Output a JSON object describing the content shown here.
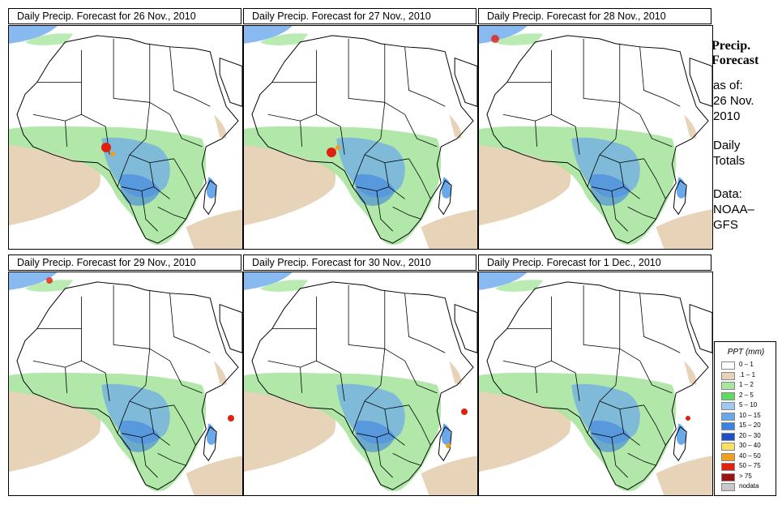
{
  "panels": [
    {
      "title": "Daily Precip. Forecast for  26 Nov., 2010"
    },
    {
      "title": "Daily Precip. Forecast for  27 Nov., 2010"
    },
    {
      "title": "Daily Precip. Forecast for  28 Nov., 2010"
    },
    {
      "title": "Daily Precip. Forecast for  29 Nov., 2010"
    },
    {
      "title": "Daily Precip. Forecast for  30 Nov., 2010"
    },
    {
      "title": "Daily Precip. Forecast for  1 Dec., 2010"
    }
  ],
  "side": {
    "title_line1": "Precip.",
    "title_line2": "Forecast",
    "asof_label": "as of:",
    "date_line1": "26 Nov.",
    "date_line2": "2010",
    "totals_line1": "Daily",
    "totals_line2": "Totals",
    "data_line1": "Data:",
    "data_line2": "NOAA–",
    "data_line3": "GFS"
  },
  "legend": {
    "title": "PPT (mm)",
    "items": [
      {
        "label": "0 – 1",
        "color": "#ffffff"
      },
      {
        "label": ".1 – 1",
        "color": "#e6d3b8"
      },
      {
        "label": "1 – 2",
        "color": "#a8e6a0"
      },
      {
        "label": "2 – 5",
        "color": "#5fdc5f"
      },
      {
        "label": "5 – 10",
        "color": "#a0c8f0"
      },
      {
        "label": "10 – 15",
        "color": "#6aa8ec"
      },
      {
        "label": "15 – 20",
        "color": "#3c82e0"
      },
      {
        "label": "20 – 30",
        "color": "#1c50c8"
      },
      {
        "label": "30 – 40",
        "color": "#f8e060"
      },
      {
        "label": "40 – 50",
        "color": "#f0a020"
      },
      {
        "label": "50 – 75",
        "color": "#e02010"
      },
      {
        "label": "> 75",
        "color": "#a01010"
      },
      {
        "label": "nodata",
        "color": "#c8c8c8"
      }
    ]
  }
}
